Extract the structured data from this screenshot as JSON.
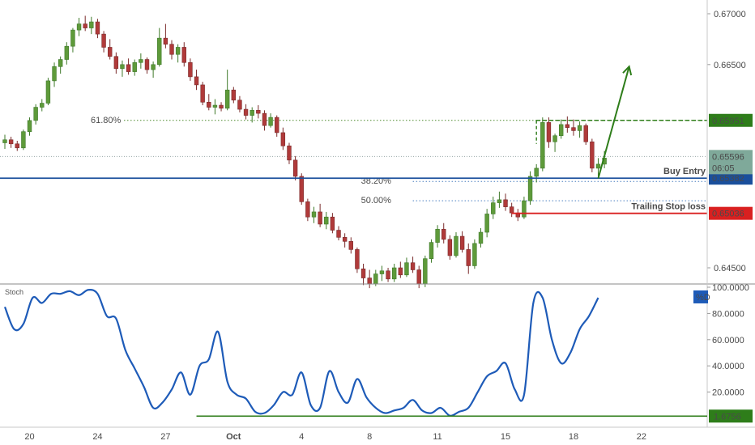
{
  "chart_data": [
    {
      "type": "candlestick",
      "ylim": [
        0.6418,
        0.6715
      ],
      "y_ticks": [
        "0.67000",
        "0.66500",
        "0.64500"
      ],
      "x_ticks": [
        {
          "label": "20",
          "i": 4
        },
        {
          "label": "24",
          "i": 15
        },
        {
          "label": "27",
          "i": 26
        },
        {
          "label": "Oct",
          "i": 37,
          "bold": true
        },
        {
          "label": "4",
          "i": 48
        },
        {
          "label": "8",
          "i": 59
        },
        {
          "label": "11",
          "i": 70
        },
        {
          "label": "15",
          "i": 81
        },
        {
          "label": "18",
          "i": 92
        },
        {
          "label": "22",
          "i": 103
        }
      ],
      "candles": [
        [
          0.6573,
          0.6581,
          0.6567,
          0.6576
        ],
        [
          0.6576,
          0.6579,
          0.6568,
          0.6572
        ],
        [
          0.6572,
          0.6575,
          0.6565,
          0.6568
        ],
        [
          0.6568,
          0.6586,
          0.6566,
          0.6584
        ],
        [
          0.6584,
          0.6598,
          0.658,
          0.6595
        ],
        [
          0.6595,
          0.6611,
          0.6591,
          0.6608
        ],
        [
          0.6608,
          0.6616,
          0.6604,
          0.6612
        ],
        [
          0.6612,
          0.6637,
          0.661,
          0.6634
        ],
        [
          0.6634,
          0.6652,
          0.6628,
          0.6648
        ],
        [
          0.6648,
          0.6658,
          0.6641,
          0.6655
        ],
        [
          0.6655,
          0.6672,
          0.665,
          0.6668
        ],
        [
          0.6668,
          0.6686,
          0.6662,
          0.6684
        ],
        [
          0.6684,
          0.6696,
          0.6678,
          0.669
        ],
        [
          0.669,
          0.6698,
          0.6683,
          0.6686
        ],
        [
          0.6686,
          0.6697,
          0.668,
          0.6692
        ],
        [
          0.6692,
          0.6695,
          0.6676,
          0.668
        ],
        [
          0.668,
          0.6683,
          0.6662,
          0.6667
        ],
        [
          0.6667,
          0.6675,
          0.6655,
          0.6658
        ],
        [
          0.6658,
          0.6662,
          0.6641,
          0.6646
        ],
        [
          0.6646,
          0.6654,
          0.6638,
          0.665
        ],
        [
          0.665,
          0.6656,
          0.664,
          0.6643
        ],
        [
          0.6643,
          0.6655,
          0.6639,
          0.6652
        ],
        [
          0.6652,
          0.6661,
          0.6646,
          0.6655
        ],
        [
          0.6655,
          0.6657,
          0.6641,
          0.6645
        ],
        [
          0.6645,
          0.6653,
          0.6637,
          0.665
        ],
        [
          0.665,
          0.6686,
          0.6648,
          0.6676
        ],
        [
          0.6676,
          0.669,
          0.6666,
          0.667
        ],
        [
          0.667,
          0.6674,
          0.6655,
          0.666
        ],
        [
          0.666,
          0.667,
          0.6652,
          0.6667
        ],
        [
          0.6667,
          0.6672,
          0.6648,
          0.6652
        ],
        [
          0.6652,
          0.6656,
          0.6634,
          0.6638
        ],
        [
          0.6638,
          0.6645,
          0.6625,
          0.663
        ],
        [
          0.663,
          0.6633,
          0.661,
          0.6613
        ],
        [
          0.6613,
          0.6621,
          0.6605,
          0.6608
        ],
        [
          0.6608,
          0.6616,
          0.6601,
          0.661
        ],
        [
          0.661,
          0.6613,
          0.6604,
          0.6607
        ],
        [
          0.6607,
          0.6645,
          0.6605,
          0.6625
        ],
        [
          0.6625,
          0.6628,
          0.6612,
          0.6615
        ],
        [
          0.6615,
          0.6619,
          0.6603,
          0.6606
        ],
        [
          0.6606,
          0.6611,
          0.6596,
          0.66
        ],
        [
          0.66,
          0.6608,
          0.6593,
          0.6605
        ],
        [
          0.6605,
          0.661,
          0.6597,
          0.6602
        ],
        [
          0.6602,
          0.6605,
          0.6585,
          0.659
        ],
        [
          0.659,
          0.6602,
          0.6588,
          0.6598
        ],
        [
          0.6598,
          0.66,
          0.6579,
          0.6583
        ],
        [
          0.6583,
          0.6588,
          0.6566,
          0.657
        ],
        [
          0.657,
          0.6573,
          0.6552,
          0.6556
        ],
        [
          0.6556,
          0.656,
          0.6536,
          0.654
        ],
        [
          0.654,
          0.6543,
          0.6512,
          0.6515
        ],
        [
          0.6515,
          0.6518,
          0.6496,
          0.65
        ],
        [
          0.65,
          0.651,
          0.6494,
          0.6505
        ],
        [
          0.6505,
          0.6513,
          0.649,
          0.6493
        ],
        [
          0.6493,
          0.6505,
          0.6488,
          0.65
        ],
        [
          0.65,
          0.6504,
          0.6484,
          0.6487
        ],
        [
          0.6487,
          0.6491,
          0.6477,
          0.648
        ],
        [
          0.648,
          0.6484,
          0.647,
          0.6476
        ],
        [
          0.6476,
          0.648,
          0.6464,
          0.6468
        ],
        [
          0.6468,
          0.647,
          0.6445,
          0.6449
        ],
        [
          0.6449,
          0.6454,
          0.6433,
          0.644
        ],
        [
          0.644,
          0.6448,
          0.643,
          0.6434
        ],
        [
          0.6434,
          0.6448,
          0.6432,
          0.6444
        ],
        [
          0.6444,
          0.6452,
          0.6437,
          0.6447
        ],
        [
          0.6447,
          0.645,
          0.6436,
          0.6439
        ],
        [
          0.6439,
          0.6454,
          0.6436,
          0.645
        ],
        [
          0.645,
          0.6456,
          0.644,
          0.6443
        ],
        [
          0.6443,
          0.646,
          0.6441,
          0.6455
        ],
        [
          0.6455,
          0.6461,
          0.6445,
          0.6448
        ],
        [
          0.6448,
          0.6452,
          0.643,
          0.6434
        ],
        [
          0.6434,
          0.6462,
          0.6431,
          0.6459
        ],
        [
          0.6459,
          0.6478,
          0.6455,
          0.6475
        ],
        [
          0.6475,
          0.6492,
          0.647,
          0.6488
        ],
        [
          0.6488,
          0.6494,
          0.6474,
          0.6478
        ],
        [
          0.6478,
          0.6482,
          0.6458,
          0.6462
        ],
        [
          0.6462,
          0.6485,
          0.646,
          0.6481
        ],
        [
          0.6481,
          0.6486,
          0.6465,
          0.6468
        ],
        [
          0.6468,
          0.6474,
          0.6444,
          0.6452
        ],
        [
          0.6452,
          0.6478,
          0.6449,
          0.6474
        ],
        [
          0.6474,
          0.6489,
          0.647,
          0.6485
        ],
        [
          0.6485,
          0.6508,
          0.648,
          0.6503
        ],
        [
          0.6503,
          0.652,
          0.6498,
          0.6514
        ],
        [
          0.6514,
          0.6525,
          0.6509,
          0.6517
        ],
        [
          0.6517,
          0.6523,
          0.6506,
          0.651
        ],
        [
          0.651,
          0.6514,
          0.65,
          0.6504
        ],
        [
          0.6504,
          0.6508,
          0.6496,
          0.65
        ],
        [
          0.65,
          0.652,
          0.6498,
          0.6516
        ],
        [
          0.6516,
          0.6545,
          0.6512,
          0.654
        ],
        [
          0.654,
          0.6552,
          0.6534,
          0.6548
        ],
        [
          0.6548,
          0.6598,
          0.6545,
          0.6593
        ],
        [
          0.6593,
          0.6598,
          0.6568,
          0.6574
        ],
        [
          0.6574,
          0.6582,
          0.6564,
          0.658
        ],
        [
          0.658,
          0.6596,
          0.6577,
          0.6591
        ],
        [
          0.6591,
          0.6599,
          0.6583,
          0.6588
        ],
        [
          0.6588,
          0.6596,
          0.658,
          0.6585
        ],
        [
          0.6585,
          0.6594,
          0.6578,
          0.659
        ],
        [
          0.659,
          0.6592,
          0.6571,
          0.6574
        ],
        [
          0.6574,
          0.6577,
          0.6544,
          0.6548
        ],
        [
          0.6548,
          0.6558,
          0.654,
          0.6552
        ],
        [
          0.6552,
          0.6565,
          0.6548,
          0.6558
        ]
      ],
      "fib_levels": [
        {
          "label": "61.80%",
          "value": 0.65951,
          "color": "#4e8a2e",
          "from": 0
        },
        {
          "label": "38.20%",
          "value": 0.6535,
          "color": "#4a7fc0",
          "from": 66
        },
        {
          "label": "50.00%",
          "value": 0.6516,
          "color": "#4a7fc0",
          "from": 66
        }
      ],
      "current_price": {
        "value": 0.65596,
        "label": "0.65596",
        "countdown": "06:05",
        "color": "#7fa99a"
      },
      "levels": [
        {
          "name": "resistance",
          "value": 0.65951,
          "label": "0.65951",
          "color": "#2e7d1a",
          "style": "dashed",
          "from": 86
        },
        {
          "name": "buy-entry",
          "value": 0.65382,
          "label": "0.65382",
          "text": "Buy Entry",
          "color": "#1a4f9c",
          "style": "solid",
          "from": 0
        },
        {
          "name": "stop-loss",
          "value": 0.65036,
          "label": "0.65036",
          "text": "Trailing Stop loss",
          "color": "#d92020",
          "style": "solid",
          "from": 82
        }
      ],
      "arrow": {
        "color": "#2e7d1a",
        "from_i": 96,
        "from_y": 0.6538,
        "to_i": 101,
        "to_y": 0.6648
      }
    },
    {
      "type": "line",
      "title": "Stoch",
      "ylim": [
        0,
        100
      ],
      "y_ticks": [
        "100.0000",
        "80.0000",
        "60.0000",
        "40.0000",
        "20.0000"
      ],
      "series": [
        {
          "name": "%D",
          "color": "#1e5bb8",
          "x": [
            0,
            1.5,
            3,
            4.5,
            6,
            7.5,
            9,
            10.5,
            12,
            13.5,
            15,
            16.5,
            18,
            19.5,
            21,
            22.5,
            24,
            25.5,
            27,
            28.5,
            30,
            31.5,
            33,
            34.5,
            36,
            37.5,
            39,
            40.5,
            42,
            43.5,
            45,
            46.5,
            48,
            49.5,
            51,
            52.5,
            54,
            55.5,
            57,
            58.5,
            60,
            61.5,
            63,
            64.5,
            66,
            67.5,
            69,
            70.5,
            72,
            73.5,
            75,
            76.5,
            78,
            79.5,
            81,
            82.5,
            84,
            85.5,
            87,
            88.5,
            90,
            91.5,
            93,
            94.5,
            96
          ],
          "values": [
            85,
            68,
            72,
            92,
            88,
            95,
            95,
            97,
            94,
            98,
            95,
            78,
            76,
            52,
            38,
            24,
            8,
            12,
            22,
            35,
            18,
            40,
            45,
            66,
            28,
            18,
            15,
            5,
            4,
            10,
            20,
            18,
            35,
            10,
            8,
            36,
            20,
            12,
            30,
            16,
            8,
            4,
            6,
            8,
            14,
            6,
            4,
            8,
            2,
            5,
            8,
            20,
            32,
            36,
            42,
            22,
            18,
            88,
            92,
            60,
            42,
            50,
            68,
            78,
            92
          ]
        }
      ],
      "marker": {
        "value": 1.6756,
        "label": "1.6756",
        "color": "#2e7d1a",
        "from": 31
      },
      "legend_badge": "%D"
    }
  ]
}
